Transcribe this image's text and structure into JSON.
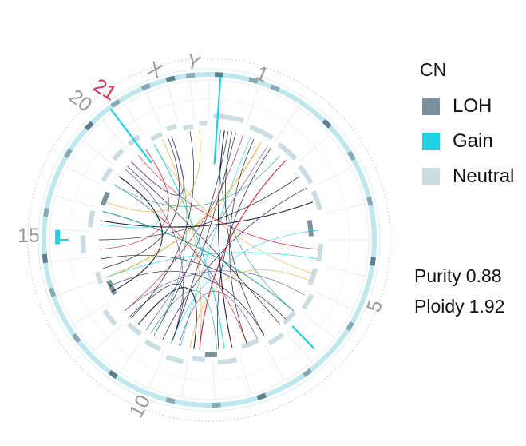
{
  "chart_data": {
    "type": "circos",
    "chromosome_labels": [
      "1",
      "5",
      "10",
      "15",
      "20",
      "21",
      "X",
      "Y"
    ],
    "highlighted_label": "21",
    "legend": {
      "title": "CN",
      "items": [
        {
          "label": "LOH",
          "color": "#7b919b"
        },
        {
          "label": "Gain",
          "color": "#1fd0e6"
        },
        {
          "label": "Neutral",
          "color": "#cbdde2"
        }
      ]
    }
  },
  "stats": {
    "purity_label": "Purity",
    "purity_value": "0.88",
    "ploidy_label": "Ploidy",
    "ploidy_value": "1.92"
  }
}
